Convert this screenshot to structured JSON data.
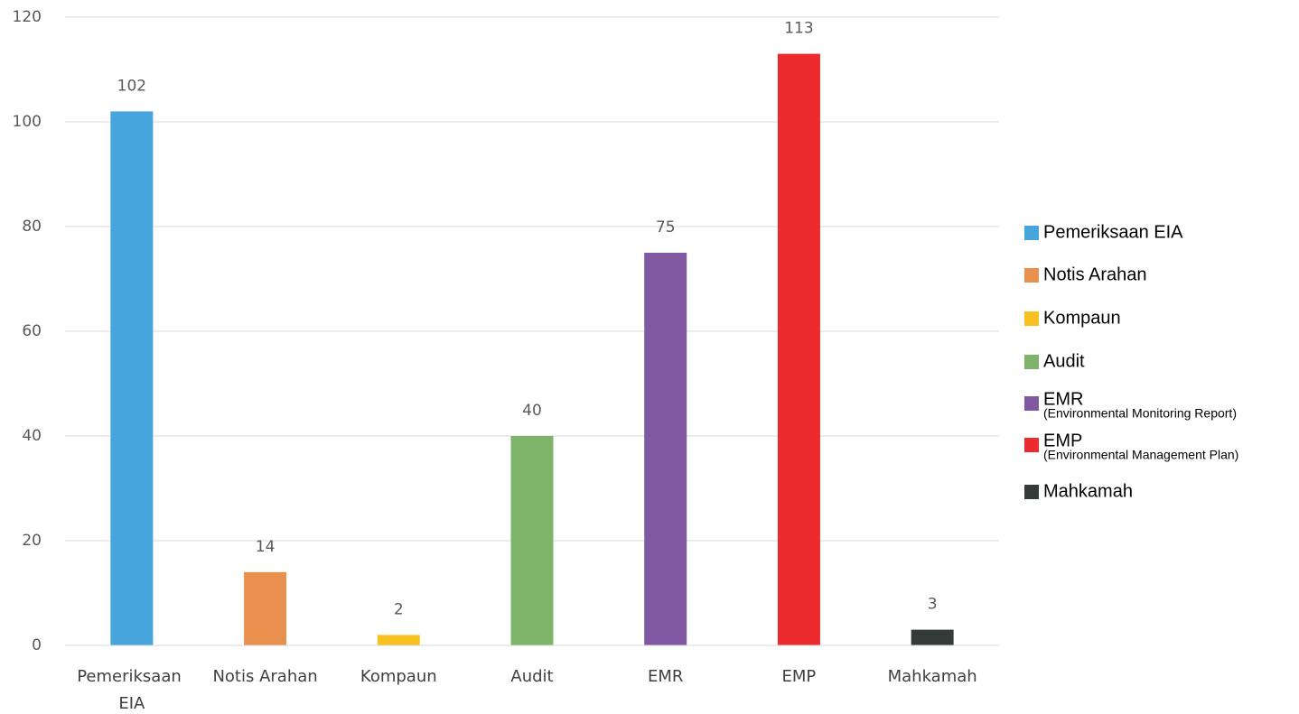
{
  "chart_data": {
    "type": "bar",
    "categories": [
      "Pemeriksaan EIA",
      "Notis Arahan",
      "Kompaun",
      "Audit",
      "EMR",
      "EMP",
      "Mahkamah"
    ],
    "values": [
      102,
      14,
      2,
      40,
      75,
      113,
      3
    ],
    "colors": [
      "#45a5dc",
      "#e8914e",
      "#f8c020",
      "#7db46a",
      "#8057a1",
      "#ec2b2e",
      "#333c39"
    ],
    "legend": [
      {
        "name": "Pemeriksaan EIA"
      },
      {
        "name": "Notis Arahan"
      },
      {
        "name": "Kompaun"
      },
      {
        "name": "Audit"
      },
      {
        "name": "EMR",
        "note": "(Environmental Monitoring Report)"
      },
      {
        "name": "EMP",
        "note": "(Environmental Management Plan)"
      },
      {
        "name": "Mahkamah"
      }
    ],
    "ylim": [
      0,
      120
    ],
    "yticks": [
      0,
      20,
      40,
      60,
      80,
      100,
      120
    ],
    "grid": true
  }
}
